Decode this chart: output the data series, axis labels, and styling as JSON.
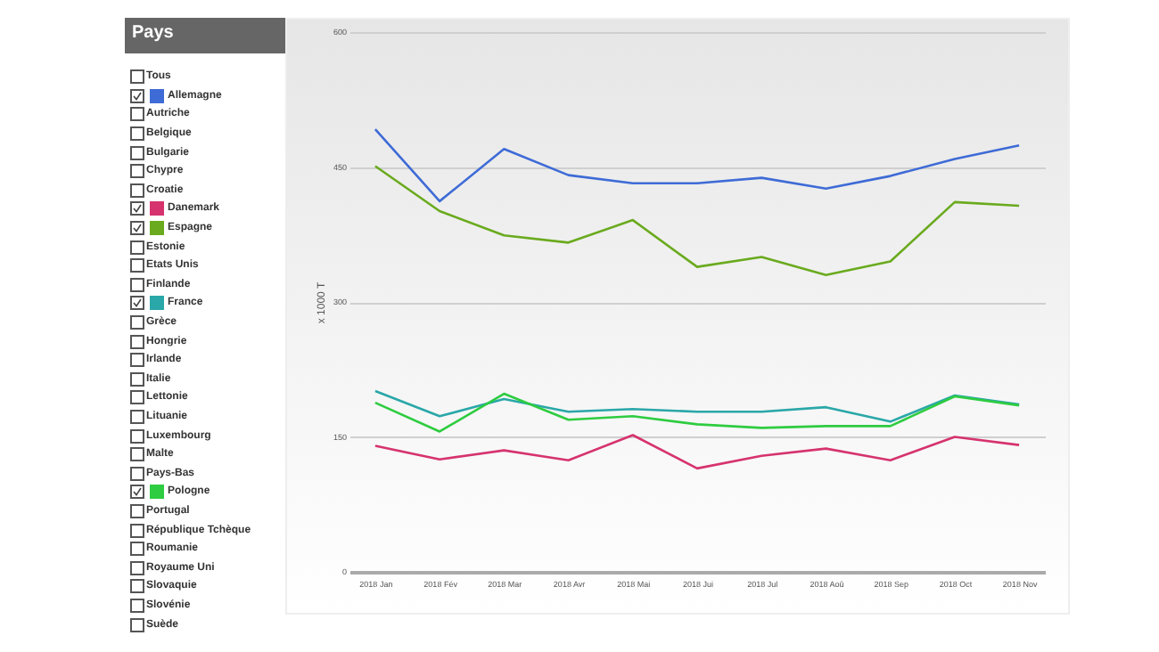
{
  "chart_data": {
    "type": "line",
    "legend_title": "Pays",
    "ylabel": "x 1000 T",
    "categories": [
      "2018 Jan",
      "2018 Fév",
      "2018 Mar",
      "2018 Avr",
      "2018 Mai",
      "2018 Jui",
      "2018 Jul",
      "2018 Aoû",
      "2018 Sep",
      "2018 Oct",
      "2018 Nov"
    ],
    "series": [
      {
        "name": "Allemagne",
        "color": "#3e6bd6",
        "values": [
          492,
          412,
          470,
          441,
          432,
          432,
          438,
          426,
          440,
          459,
          474
        ]
      },
      {
        "name": "Danemark",
        "color": "#d6336e",
        "values": [
          140,
          125,
          135,
          124,
          152,
          115,
          129,
          137,
          124,
          150,
          141
        ]
      },
      {
        "name": "Espagne",
        "color": "#6aaa1e",
        "values": [
          451,
          401,
          374,
          366,
          391,
          339,
          350,
          330,
          345,
          411,
          407
        ]
      },
      {
        "name": "France",
        "color": "#2aa7a8",
        "values": [
          201,
          173,
          192,
          178,
          181,
          178,
          178,
          183,
          167,
          196,
          186
        ]
      },
      {
        "name": "Pologne",
        "color": "#2ecc40",
        "values": [
          188,
          156,
          198,
          169,
          173,
          164,
          160,
          162,
          162,
          195,
          185
        ]
      }
    ],
    "ylim": [
      0,
      600
    ],
    "yticks": [
      0,
      150,
      300,
      450,
      600
    ],
    "grid": "y",
    "legend": "left",
    "annotations": [
      "Tous",
      "Autriche",
      "Belgique",
      "Bulgarie",
      "Chypre",
      "Croatie",
      "Estonie",
      "Etats Unis",
      "Finlande",
      "Grèce",
      "Hongrie",
      "Irlande",
      "Italie",
      "Lettonie",
      "Lituanie",
      "Luxembourg",
      "Malte",
      "Pays-Bas",
      "Portugal",
      "République Tchèque",
      "Roumanie",
      "Royaume Uni",
      "Slovaquie",
      "Slovénie",
      "Suède"
    ]
  }
}
